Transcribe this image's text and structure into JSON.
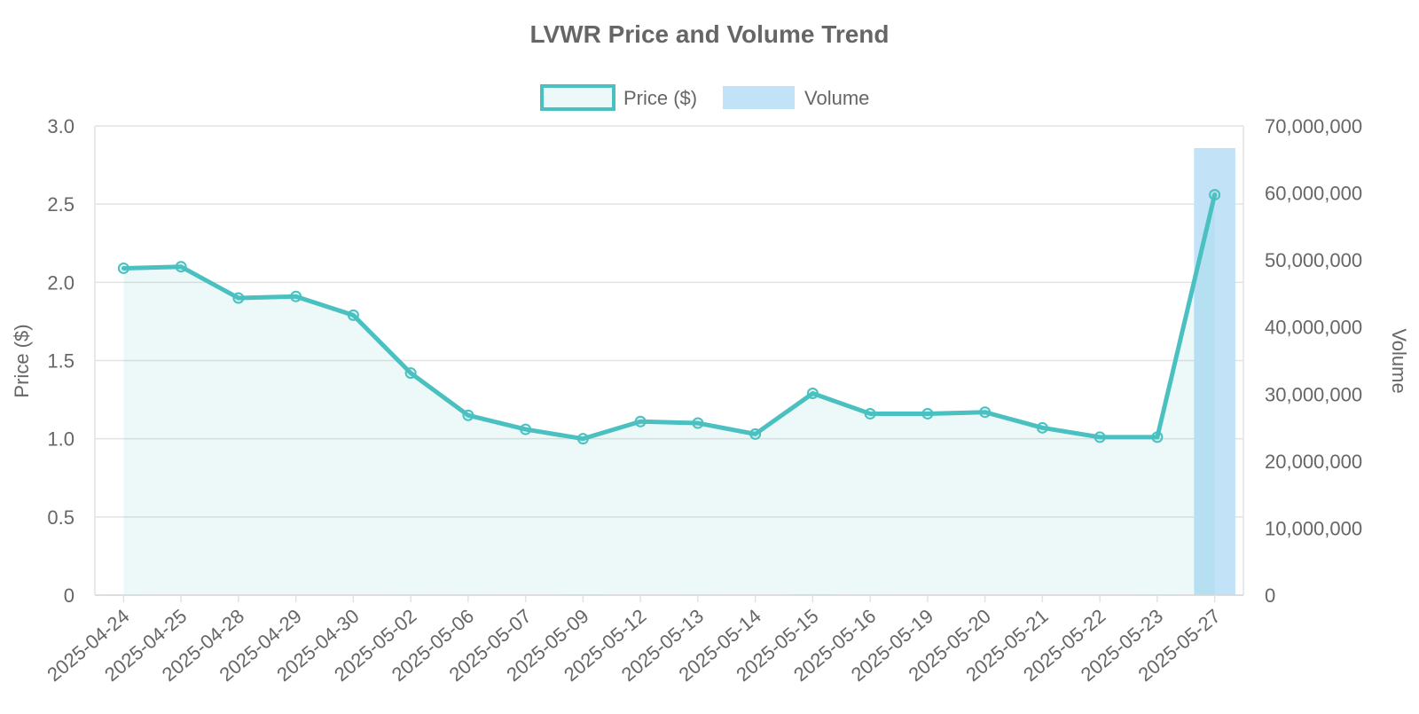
{
  "chart_data": {
    "type": "line",
    "title": "LVWR Price and Volume Trend",
    "legend": {
      "placement": "top-center",
      "entries": [
        "Price ($)",
        "Volume"
      ]
    },
    "x": [
      "2025-04-24",
      "2025-04-25",
      "2025-04-28",
      "2025-04-29",
      "2025-04-30",
      "2025-05-02",
      "2025-05-06",
      "2025-05-07",
      "2025-05-09",
      "2025-05-12",
      "2025-05-13",
      "2025-05-14",
      "2025-05-15",
      "2025-05-16",
      "2025-05-19",
      "2025-05-20",
      "2025-05-21",
      "2025-05-22",
      "2025-05-23",
      "2025-05-27"
    ],
    "series": [
      {
        "name": "Price ($)",
        "type": "line",
        "axis": "left",
        "fill": true,
        "color": "#4bc0c0",
        "values": [
          2.09,
          2.1,
          1.9,
          1.91,
          1.79,
          1.42,
          1.15,
          1.06,
          1.0,
          1.11,
          1.1,
          1.03,
          1.29,
          1.16,
          1.16,
          1.17,
          1.07,
          1.01,
          1.01,
          2.56
        ]
      },
      {
        "name": "Volume",
        "type": "bar",
        "axis": "right",
        "color": "#c2e3f7",
        "values": [
          100000,
          50000,
          40000,
          40000,
          60000,
          80000,
          80000,
          50000,
          120000,
          60000,
          80000,
          50000,
          140000,
          70000,
          50000,
          40000,
          30000,
          30000,
          90000,
          66700000
        ]
      }
    ],
    "y_left": {
      "label": "Price ($)",
      "range": [
        0,
        3.0
      ],
      "ticks": [
        "0",
        "0.5",
        "1.0",
        "1.5",
        "2.0",
        "2.5",
        "3.0"
      ]
    },
    "y_right": {
      "label": "Volume",
      "range": [
        0,
        70000000
      ],
      "ticks": [
        "0",
        "10,000,000",
        "20,000,000",
        "30,000,000",
        "40,000,000",
        "50,000,000",
        "60,000,000",
        "70,000,000"
      ]
    },
    "grid": true
  }
}
